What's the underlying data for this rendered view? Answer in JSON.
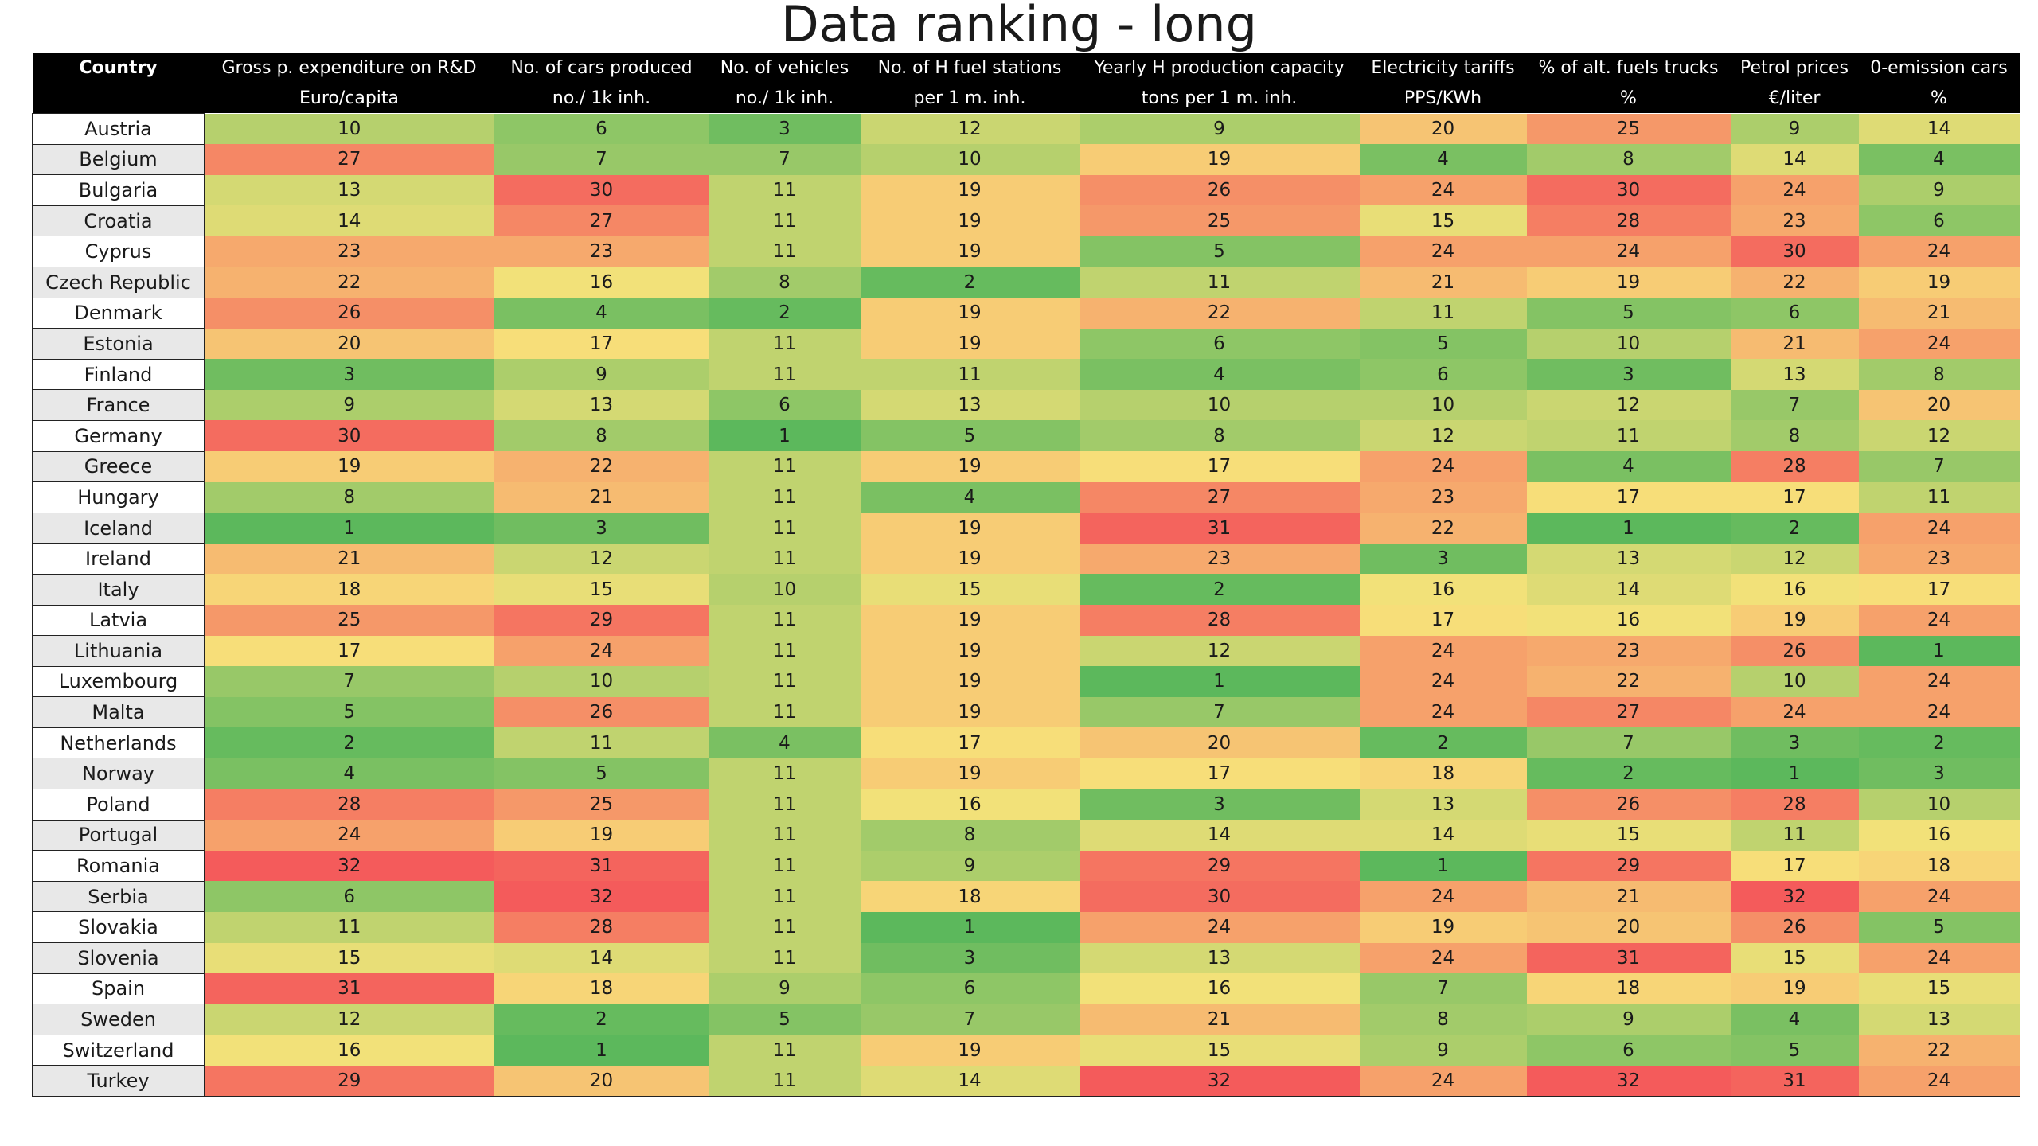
{
  "chart_data": {
    "type": "heatmap",
    "title": "Data ranking - long",
    "color_scale": {
      "low": "#5cb85c",
      "mid": "#f7e27a",
      "high": "#f45b5b",
      "min": 1,
      "max": 32
    },
    "columns": [
      {
        "id": "country",
        "line1": "Country",
        "line2": ""
      },
      {
        "id": "rd",
        "line1": "Gross p. expenditure on R&D",
        "line2": "Euro/capita"
      },
      {
        "id": "cars",
        "line1": "No. of  cars produced",
        "line2": "no./ 1k inh."
      },
      {
        "id": "vehicles",
        "line1": "No. of vehicles",
        "line2": "no./ 1k inh."
      },
      {
        "id": "hstations",
        "line1": "No. of H fuel stations",
        "line2": "per 1 m. inh."
      },
      {
        "id": "hprod",
        "line1": "Yearly H production capacity",
        "line2": "tons per 1 m. inh."
      },
      {
        "id": "elec",
        "line1": "Electricity tariffs",
        "line2": "PPS/KWh"
      },
      {
        "id": "trucks",
        "line1": "% of alt. fuels trucks",
        "line2": "%"
      },
      {
        "id": "petrol",
        "line1": "Petrol prices",
        "line2": "€/liter"
      },
      {
        "id": "zeroem",
        "line1": "0-emission cars",
        "line2": "%"
      }
    ],
    "rows": [
      {
        "country": "Austria",
        "values": [
          10,
          6,
          3,
          12,
          9,
          20,
          25,
          9,
          14
        ]
      },
      {
        "country": "Belgium",
        "values": [
          27,
          7,
          7,
          10,
          19,
          4,
          8,
          14,
          4
        ]
      },
      {
        "country": "Bulgaria",
        "values": [
          13,
          30,
          11,
          19,
          26,
          24,
          30,
          24,
          9
        ]
      },
      {
        "country": "Croatia",
        "values": [
          14,
          27,
          11,
          19,
          25,
          15,
          28,
          23,
          6
        ]
      },
      {
        "country": "Cyprus",
        "values": [
          23,
          23,
          11,
          19,
          5,
          24,
          24,
          30,
          24
        ]
      },
      {
        "country": "Czech Republic",
        "values": [
          22,
          16,
          8,
          2,
          11,
          21,
          19,
          22,
          19
        ]
      },
      {
        "country": "Denmark",
        "values": [
          26,
          4,
          2,
          19,
          22,
          11,
          5,
          6,
          21
        ]
      },
      {
        "country": "Estonia",
        "values": [
          20,
          17,
          11,
          19,
          6,
          5,
          10,
          21,
          24
        ]
      },
      {
        "country": "Finland",
        "values": [
          3,
          9,
          11,
          11,
          4,
          6,
          3,
          13,
          8
        ]
      },
      {
        "country": "France",
        "values": [
          9,
          13,
          6,
          13,
          10,
          10,
          12,
          7,
          20
        ]
      },
      {
        "country": "Germany",
        "values": [
          30,
          8,
          1,
          5,
          8,
          12,
          11,
          8,
          12
        ]
      },
      {
        "country": "Greece",
        "values": [
          19,
          22,
          11,
          19,
          17,
          24,
          4,
          28,
          7
        ]
      },
      {
        "country": "Hungary",
        "values": [
          8,
          21,
          11,
          4,
          27,
          23,
          17,
          17,
          11
        ]
      },
      {
        "country": "Iceland",
        "values": [
          1,
          3,
          11,
          19,
          31,
          22,
          1,
          2,
          24
        ]
      },
      {
        "country": "Ireland",
        "values": [
          21,
          12,
          11,
          19,
          23,
          3,
          13,
          12,
          23
        ]
      },
      {
        "country": "Italy",
        "values": [
          18,
          15,
          10,
          15,
          2,
          16,
          14,
          16,
          17
        ]
      },
      {
        "country": "Latvia",
        "values": [
          25,
          29,
          11,
          19,
          28,
          17,
          16,
          19,
          24
        ]
      },
      {
        "country": "Lithuania",
        "values": [
          17,
          24,
          11,
          19,
          12,
          24,
          23,
          26,
          1
        ]
      },
      {
        "country": "Luxembourg",
        "values": [
          7,
          10,
          11,
          19,
          1,
          24,
          22,
          10,
          24
        ]
      },
      {
        "country": "Malta",
        "values": [
          5,
          26,
          11,
          19,
          7,
          24,
          27,
          24,
          24
        ]
      },
      {
        "country": "Netherlands",
        "values": [
          2,
          11,
          4,
          17,
          20,
          2,
          7,
          3,
          2
        ]
      },
      {
        "country": "Norway",
        "values": [
          4,
          5,
          11,
          19,
          17,
          18,
          2,
          1,
          3
        ]
      },
      {
        "country": "Poland",
        "values": [
          28,
          25,
          11,
          16,
          3,
          13,
          26,
          28,
          10
        ]
      },
      {
        "country": "Portugal",
        "values": [
          24,
          19,
          11,
          8,
          14,
          14,
          15,
          11,
          16
        ]
      },
      {
        "country": "Romania",
        "values": [
          32,
          31,
          11,
          9,
          29,
          1,
          29,
          17,
          18
        ]
      },
      {
        "country": "Serbia",
        "values": [
          6,
          32,
          11,
          18,
          30,
          24,
          21,
          32,
          24
        ]
      },
      {
        "country": "Slovakia",
        "values": [
          11,
          28,
          11,
          1,
          24,
          19,
          20,
          26,
          5
        ]
      },
      {
        "country": "Slovenia",
        "values": [
          15,
          14,
          11,
          3,
          13,
          24,
          31,
          15,
          24
        ]
      },
      {
        "country": "Spain",
        "values": [
          31,
          18,
          9,
          6,
          16,
          7,
          18,
          19,
          15
        ]
      },
      {
        "country": "Sweden",
        "values": [
          12,
          2,
          5,
          7,
          21,
          8,
          9,
          4,
          13
        ]
      },
      {
        "country": "Switzerland",
        "values": [
          16,
          1,
          11,
          19,
          15,
          9,
          6,
          5,
          22
        ]
      },
      {
        "country": "Turkey",
        "values": [
          29,
          20,
          11,
          14,
          32,
          24,
          32,
          31,
          24
        ]
      }
    ]
  }
}
